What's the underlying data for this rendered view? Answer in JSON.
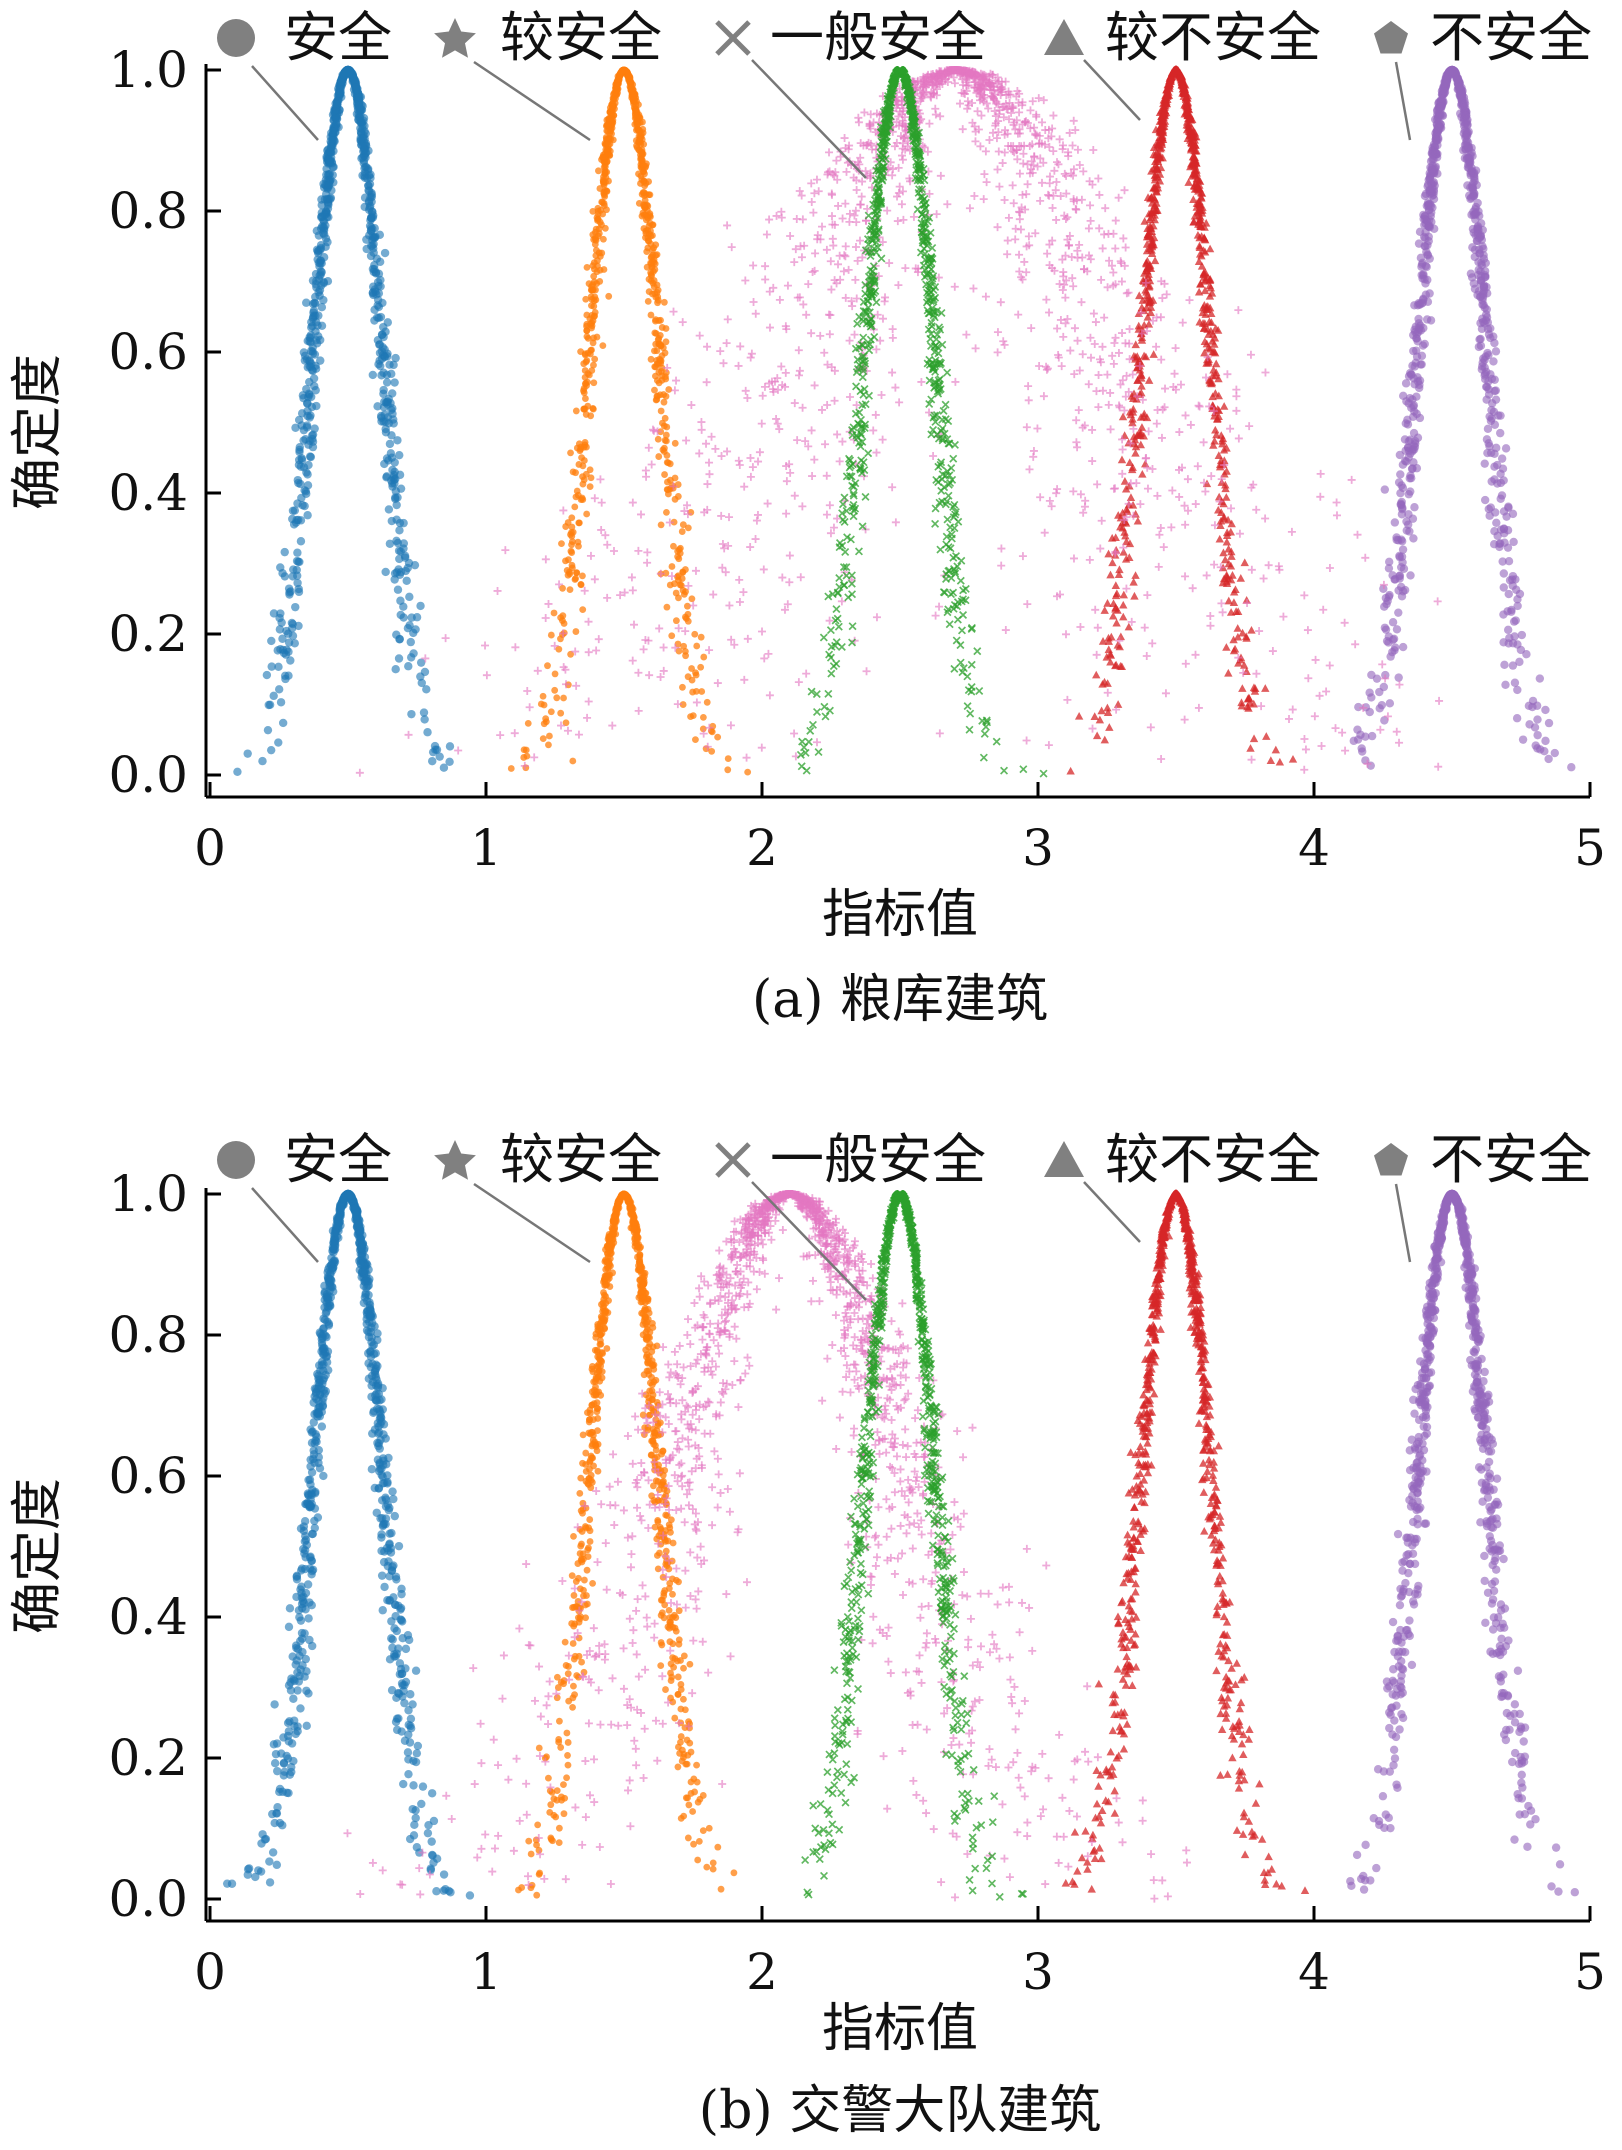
{
  "chart_data": [
    {
      "type": "scatter",
      "subtitle": "(a) 粮库建筑",
      "xlabel": "指标值",
      "ylabel": "确定度",
      "xlim": [
        0,
        5
      ],
      "ylim": [
        0,
        1
      ],
      "xticks": [
        "0",
        "1",
        "2",
        "3",
        "4",
        "5"
      ],
      "yticks": [
        "0.0",
        "0.2",
        "0.4",
        "0.6",
        "0.8",
        "1.0"
      ],
      "grid": false,
      "legend_position": "top, annotated with leader lines",
      "series": [
        {
          "name": "安全",
          "marker": "circle",
          "color": "#1f77b4",
          "peak_x": 0.5,
          "en": 0.125,
          "he": 0.015,
          "x_range": [
            0.0,
            1.1
          ]
        },
        {
          "name": "较安全",
          "marker": "star",
          "color": "#ff7f0e",
          "peak_x": 1.5,
          "en": 0.125,
          "he": 0.015,
          "x_range": [
            0.9,
            2.1
          ]
        },
        {
          "name": "一般安全",
          "marker": "x",
          "color": "#2ca02c",
          "peak_x": 2.5,
          "en": 0.125,
          "he": 0.015,
          "x_range": [
            1.9,
            3.1
          ]
        },
        {
          "name": "较不安全",
          "marker": "triangle",
          "color": "#d62728",
          "peak_x": 3.5,
          "en": 0.125,
          "he": 0.015,
          "x_range": [
            2.9,
            4.1
          ]
        },
        {
          "name": "不安全",
          "marker": "pentagon",
          "color": "#9467bd",
          "peak_x": 4.5,
          "en": 0.125,
          "he": 0.015,
          "x_range": [
            3.9,
            5.0
          ]
        },
        {
          "marker": "plus",
          "color": "#e377c2",
          "peak_x": 2.7,
          "en": 0.55,
          "he": 0.22,
          "x_range": [
            0.5,
            4.5
          ]
        }
      ]
    },
    {
      "type": "scatter",
      "subtitle": "(b) 交警大队建筑",
      "xlabel": "指标值",
      "ylabel": "确定度",
      "xlim": [
        0,
        5
      ],
      "ylim": [
        0,
        1
      ],
      "xticks": [
        "0",
        "1",
        "2",
        "3",
        "4",
        "5"
      ],
      "yticks": [
        "0.0",
        "0.2",
        "0.4",
        "0.6",
        "0.8",
        "1.0"
      ],
      "grid": false,
      "legend_position": "top, annotated with leader lines",
      "series": [
        {
          "name": "安全",
          "marker": "circle",
          "color": "#1f77b4",
          "peak_x": 0.5,
          "en": 0.125,
          "he": 0.015,
          "x_range": [
            0.0,
            1.3
          ]
        },
        {
          "name": "较安全",
          "marker": "star",
          "color": "#ff7f0e",
          "peak_x": 1.5,
          "en": 0.125,
          "he": 0.015,
          "x_range": [
            0.8,
            2.1
          ]
        },
        {
          "name": "一般安全",
          "marker": "x",
          "color": "#2ca02c",
          "peak_x": 2.5,
          "en": 0.125,
          "he": 0.015,
          "x_range": [
            1.9,
            3.1
          ]
        },
        {
          "name": "较不安全",
          "marker": "triangle",
          "color": "#d62728",
          "peak_x": 3.5,
          "en": 0.125,
          "he": 0.015,
          "x_range": [
            2.9,
            4.1
          ]
        },
        {
          "name": "不安全",
          "marker": "pentagon",
          "color": "#9467bd",
          "peak_x": 4.5,
          "en": 0.125,
          "he": 0.015,
          "x_range": [
            3.9,
            5.0
          ]
        },
        {
          "marker": "plus",
          "color": "#e377c2",
          "peak_x": 2.1,
          "en": 0.42,
          "he": 0.12,
          "x_range": [
            0.4,
            3.6
          ]
        }
      ]
    }
  ]
}
